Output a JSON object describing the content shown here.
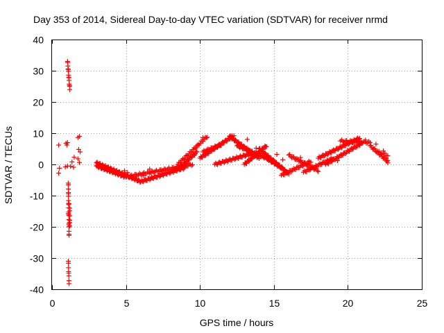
{
  "chart_data": {
    "type": "scatter",
    "title": "Day 353 of 2014, Sidereal Day-to-day VTEC variation (SDTVAR) for receiver nrmd",
    "xlabel": "GPS time / hours",
    "ylabel": "SDTVAR / TECUs",
    "xlim": [
      0,
      25
    ],
    "ylim": [
      -40,
      40
    ],
    "xticks": [
      0,
      5,
      10,
      15,
      20,
      25
    ],
    "yticks": [
      -40,
      -30,
      -20,
      -10,
      0,
      10,
      20,
      30,
      40
    ],
    "grid": true,
    "marker": "+",
    "color": "#ff0000",
    "series": [
      {
        "name": "SDTVAR",
        "segments": [
          {
            "x0": 1.05,
            "y0": 33,
            "x1": 1.2,
            "y1": 24,
            "n": 14
          },
          {
            "x0": 1.1,
            "y0": -6,
            "x1": 1.15,
            "y1": -23,
            "n": 20
          },
          {
            "x0": 1.2,
            "y0": -14,
            "x1": 1.2,
            "y1": -20,
            "n": 6
          },
          {
            "x0": 1.1,
            "y0": -31,
            "x1": 1.15,
            "y1": -38,
            "n": 8
          },
          {
            "x0": 3.0,
            "y0": 0.5,
            "x1": 6.0,
            "y1": -5.5,
            "n": 60
          },
          {
            "x0": 3.0,
            "y0": -0.5,
            "x1": 5.0,
            "y1": -4.0,
            "n": 40
          },
          {
            "x0": 5.0,
            "y0": -4.0,
            "x1": 9.5,
            "y1": 0.0,
            "n": 60
          },
          {
            "x0": 6.0,
            "y0": -5.5,
            "x1": 9.0,
            "y1": -1.0,
            "n": 50
          },
          {
            "x0": 8.5,
            "y0": 0.0,
            "x1": 10.5,
            "y1": 9.0,
            "n": 30
          },
          {
            "x0": 8.5,
            "y0": -1.5,
            "x1": 9.8,
            "y1": 4.0,
            "n": 25
          },
          {
            "x0": 10.0,
            "y0": 2.0,
            "x1": 12.2,
            "y1": 9.0,
            "n": 40
          },
          {
            "x0": 10.2,
            "y0": 4.0,
            "x1": 11.5,
            "y1": 6.5,
            "n": 20
          },
          {
            "x0": 11.0,
            "y0": 0.0,
            "x1": 13.5,
            "y1": 3.5,
            "n": 40
          },
          {
            "x0": 12.0,
            "y0": 9.0,
            "x1": 14.0,
            "y1": 2.0,
            "n": 40
          },
          {
            "x0": 12.5,
            "y0": 6.0,
            "x1": 15.0,
            "y1": 1.0,
            "n": 40
          },
          {
            "x0": 13.0,
            "y0": 0.0,
            "x1": 14.5,
            "y1": 6.0,
            "n": 30
          },
          {
            "x0": 14.0,
            "y0": 5.0,
            "x1": 16.0,
            "y1": -3.0,
            "n": 40
          },
          {
            "x0": 14.5,
            "y0": 2.0,
            "x1": 15.5,
            "y1": -1.0,
            "n": 20
          },
          {
            "x0": 15.5,
            "y0": -3.5,
            "x1": 17.5,
            "y1": 1.0,
            "n": 30
          },
          {
            "x0": 16.0,
            "y0": 3.0,
            "x1": 18.0,
            "y1": -2.0,
            "n": 30
          },
          {
            "x0": 17.0,
            "y0": -2.5,
            "x1": 19.0,
            "y1": 2.0,
            "n": 30
          },
          {
            "x0": 18.0,
            "y0": 2.0,
            "x1": 20.8,
            "y1": 8.5,
            "n": 45
          },
          {
            "x0": 18.5,
            "y0": 0.0,
            "x1": 21.0,
            "y1": 7.0,
            "n": 40
          },
          {
            "x0": 19.5,
            "y0": 7.5,
            "x1": 21.5,
            "y1": 7.0,
            "n": 25
          },
          {
            "x0": 21.5,
            "y0": 6.0,
            "x1": 22.7,
            "y1": 1.0,
            "n": 20
          },
          {
            "x0": 22.0,
            "y0": 4.0,
            "x1": 22.7,
            "y1": 3.0,
            "n": 8
          }
        ],
        "points": [
          [
            0.45,
            6.2
          ],
          [
            0.5,
            -1.2
          ],
          [
            0.45,
            -2.8
          ],
          [
            0.95,
            6.8
          ],
          [
            1.05,
            7.0
          ],
          [
            1.0,
            6.2
          ],
          [
            1.05,
            -0.5
          ],
          [
            0.9,
            -0.8
          ],
          [
            1.25,
            -0.6
          ],
          [
            1.5,
            2.3
          ],
          [
            1.35,
            0.8
          ],
          [
            1.45,
            -0.9
          ],
          [
            1.75,
            8.6
          ],
          [
            1.85,
            9.0
          ],
          [
            1.8,
            4.8
          ],
          [
            1.9,
            4.0
          ],
          [
            1.75,
            1.8
          ],
          [
            1.85,
            0.6
          ],
          [
            1.15,
            -12.6
          ],
          [
            1.1,
            -15.8
          ],
          [
            4.9,
            -2.0
          ],
          [
            5.1,
            -2.6
          ],
          [
            6.2,
            -3.6
          ],
          [
            6.6,
            -1.5
          ],
          [
            7.3,
            -2.2
          ],
          [
            9.2,
            0.2
          ],
          [
            9.8,
            5.8
          ],
          [
            10.2,
            8.6
          ],
          [
            12.3,
            9.2
          ],
          [
            13.2,
            8.0
          ],
          [
            13.8,
            5.2
          ],
          [
            15.2,
            3.2
          ],
          [
            15.6,
            1.5
          ],
          [
            16.8,
            2.2
          ],
          [
            18.3,
            0.5
          ],
          [
            19.3,
            1.2
          ],
          [
            21.2,
            7.8
          ],
          [
            21.9,
            6.5
          ],
          [
            22.4,
            4.3
          ],
          [
            22.6,
            2.0
          ],
          [
            22.7,
            0.5
          ]
        ]
      }
    ]
  }
}
